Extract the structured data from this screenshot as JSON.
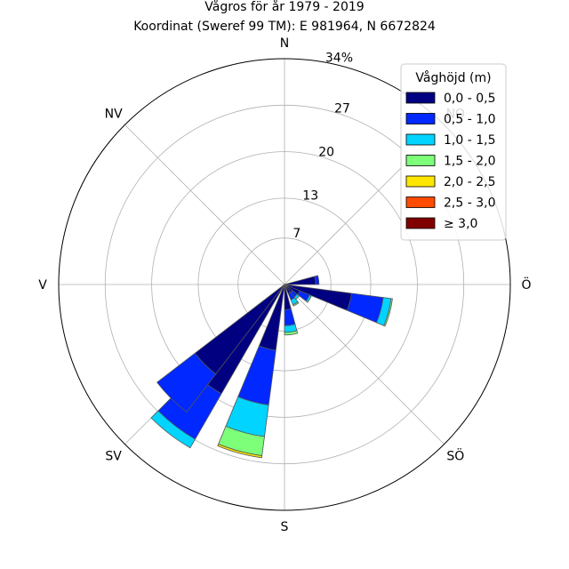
{
  "chart_data": {
    "type": "windrose",
    "title": "Vågros för år 1979 - 2019",
    "subtitle": "Koordinat (Sweref 99 TM): E 981964, N 6672824",
    "direction_labels": [
      "N",
      "NO",
      "Ö",
      "SÖ",
      "S",
      "SV",
      "V",
      "NV"
    ],
    "radial_ticks": [
      7,
      13,
      20,
      27
    ],
    "radial_max_label": "34%",
    "r_max": 34,
    "grid": true,
    "legend": {
      "title": "Våghöjd (m)",
      "placement": "top-right",
      "items": [
        {
          "label": "0,0 - 0,5",
          "color": "#000080"
        },
        {
          "label": "0,5 - 1,0",
          "color": "#0028ff"
        },
        {
          "label": "1,0 - 1,5",
          "color": "#00d4ff"
        },
        {
          "label": "1,5 - 2,0",
          "color": "#7dff7a"
        },
        {
          "label": "2,0 - 2,5",
          "color": "#ffe600"
        },
        {
          "label": "2,5 - 3,0",
          "color": "#ff4a00"
        },
        {
          "label": "≥ 3,0",
          "color": "#800000"
        }
      ]
    },
    "sector_width_deg": 15,
    "sectors": [
      {
        "direction_deg": 82.5,
        "cumulative": [
          4.7,
          5.2
        ]
      },
      {
        "direction_deg": 105,
        "cumulative": [
          10.2,
          15.0,
          16.2,
          16.4
        ]
      },
      {
        "direction_deg": 120,
        "cumulative": [
          2.5,
          4.1,
          4.4
        ]
      },
      {
        "direction_deg": 135,
        "cumulative": [
          1.5,
          2.4,
          2.8
        ]
      },
      {
        "direction_deg": 150,
        "cumulative": [
          1.5,
          2.5,
          3.3,
          3.5
        ]
      },
      {
        "direction_deg": 172.5,
        "cumulative": [
          3.8,
          6.2,
          7.2,
          7.6
        ]
      },
      {
        "direction_deg": 195,
        "cumulative": [
          10.0,
          18.3,
          23.1,
          26.0,
          26.3
        ]
      },
      {
        "direction_deg": 217.5,
        "cumulative": [
          19.0,
          26.9,
          28.4
        ]
      },
      {
        "direction_deg": 225,
        "cumulative": [
          17.0,
          24.2
        ]
      }
    ]
  }
}
